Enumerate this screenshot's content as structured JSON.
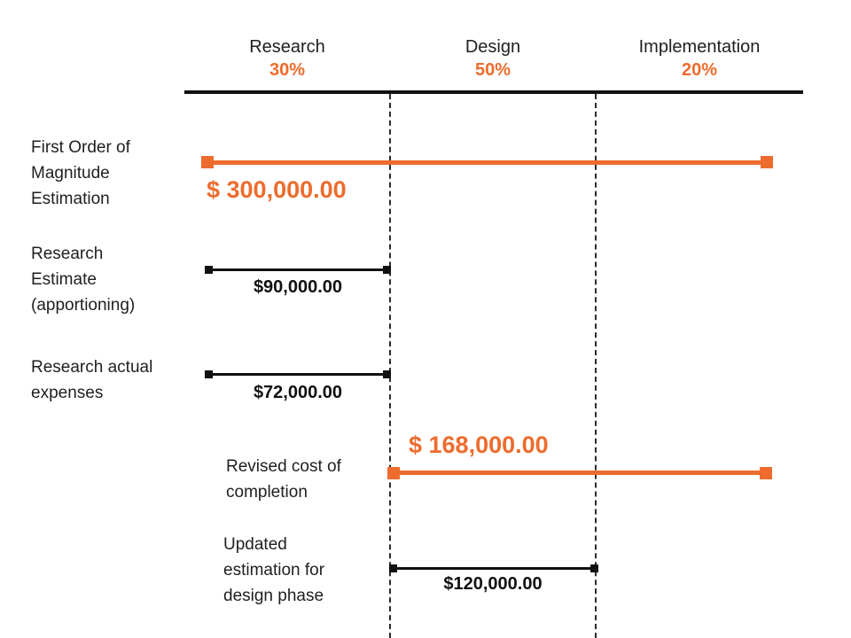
{
  "chart_data": {
    "type": "bar",
    "subtype": "horizontal-range-milestone",
    "title": "",
    "grid": "dashed vertical separators between phases",
    "legend": "none",
    "colors": {
      "accent_orange": "#ED6C2D",
      "line_black": "#111111",
      "background": "#FFFFFF"
    },
    "phases": [
      {
        "label": "Research",
        "percent_label": "30%",
        "percent": 30
      },
      {
        "label": "Design",
        "percent_label": "50%",
        "percent": 50
      },
      {
        "label": "Implementation",
        "percent_label": "20%",
        "percent": 20
      }
    ],
    "rows": [
      {
        "label": "First Order of\nMagnitude\nEstimation",
        "value": 300000,
        "value_label": "$ 300,000.00",
        "span_start_phase": "Research",
        "span_end_phase": "Implementation",
        "color": "#ED6C2D"
      },
      {
        "label": "Research\nEstimate\n(apportioning)",
        "value": 90000,
        "value_label": "$90,000.00",
        "span_start_phase": "Research",
        "span_end_phase": "Research",
        "color": "#111111"
      },
      {
        "label": "Research actual\nexpenses",
        "value": 72000,
        "value_label": "$72,000.00",
        "span_start_phase": "Research",
        "span_end_phase": "Research",
        "color": "#111111"
      },
      {
        "label": "Revised cost of\ncompletion",
        "value": 168000,
        "value_label": "$ 168,000.00",
        "span_start_phase": "Design",
        "span_end_phase": "Implementation",
        "color": "#ED6C2D"
      },
      {
        "label": "Updated\nestimation for\ndesign phase",
        "value": 120000,
        "value_label": "$120,000.00",
        "span_start_phase": "Design",
        "span_end_phase": "Design",
        "color": "#111111"
      }
    ]
  }
}
